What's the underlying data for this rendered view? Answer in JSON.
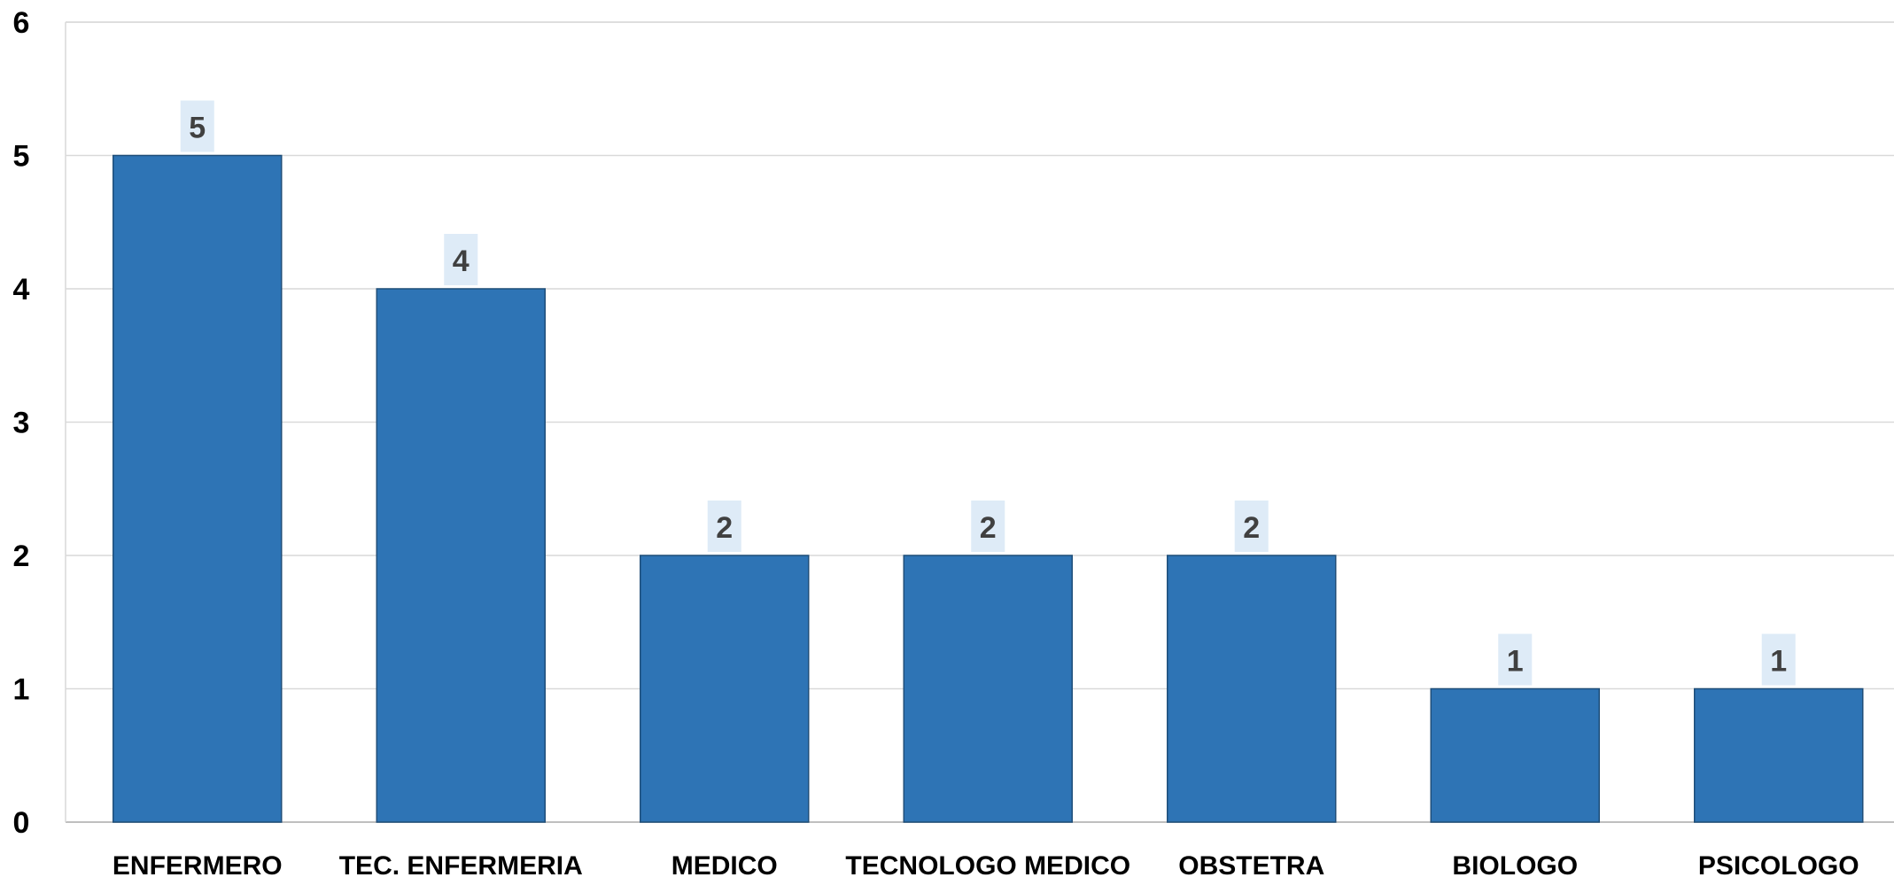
{
  "chart_data": {
    "type": "bar",
    "categories": [
      "ENFERMERO",
      "TEC. ENFERMERIA",
      "MEDICO",
      "TECNOLOGO MEDICO",
      "OBSTETRA",
      "BIOLOGO",
      "PSICOLOGO"
    ],
    "values": [
      5,
      4,
      2,
      2,
      2,
      1,
      1
    ],
    "data_labels": [
      "5",
      "4",
      "2",
      "2",
      "2",
      "1",
      "1"
    ],
    "ylim": [
      0,
      6
    ],
    "yticks": [
      "0",
      "1",
      "2",
      "3",
      "4",
      "5",
      "6"
    ],
    "title": "",
    "xlabel": "",
    "ylabel": "",
    "grid": true,
    "legend": "none",
    "colors": {
      "bar": "#2E74B5",
      "bar_edge": "#1F4E79",
      "grid": "#D9D9D9",
      "axis": "#BFBFBF",
      "label_bg": "#DEEBF7",
      "label_text": "#404040"
    }
  }
}
